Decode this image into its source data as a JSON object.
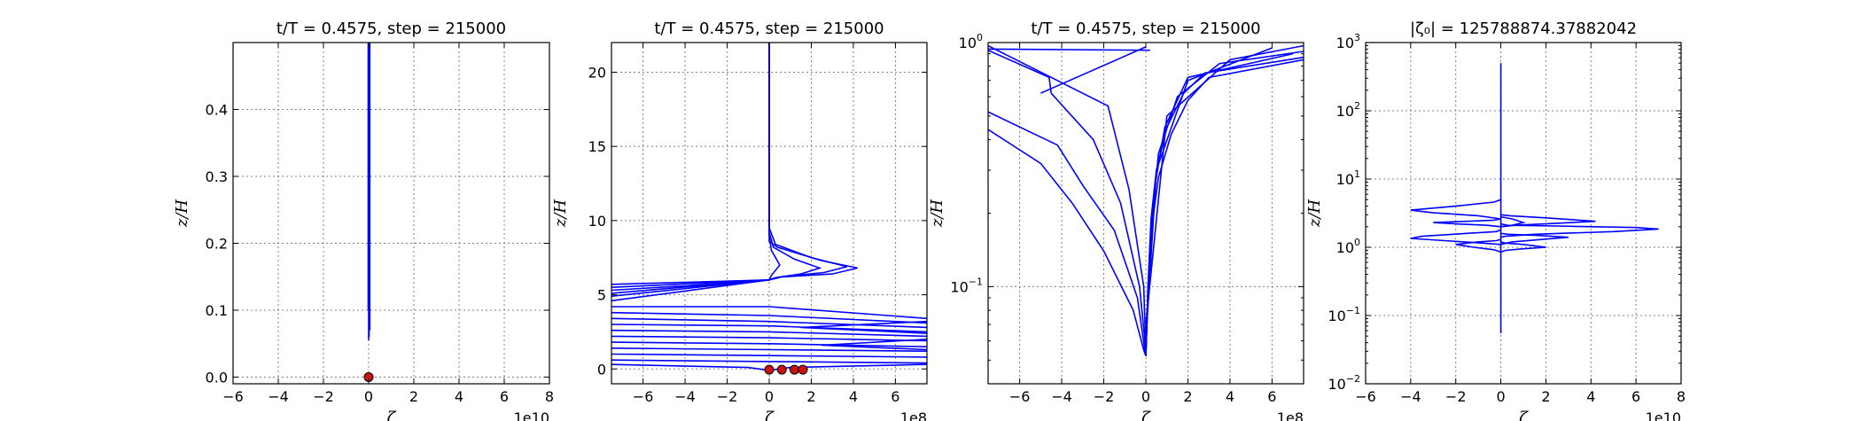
{
  "chart_data": [
    {
      "type": "line",
      "title": "t/T = 0.4575, step = 215000",
      "xlabel": "ζ",
      "ylabel": "z/H",
      "x_offset_label": "1e10",
      "xlim": [
        -6,
        8
      ],
      "ylim": [
        -0.01,
        0.5
      ],
      "xscale": "linear",
      "yscale": "linear",
      "grid": true,
      "xticks": [
        -6,
        -4,
        -2,
        0,
        2,
        4,
        6,
        8
      ],
      "xtick_labels": [
        "−6",
        "−4",
        "−2",
        "0",
        "2",
        "4",
        "6",
        "8"
      ],
      "yticks": [
        0.0,
        0.1,
        0.2,
        0.3,
        0.4
      ],
      "ytick_labels": [
        "0.0",
        "0.1",
        "0.2",
        "0.3",
        "0.4"
      ],
      "series": [
        {
          "x": [
            0.0,
            0.0
          ],
          "y": [
            0.055,
            0.5
          ]
        },
        {
          "x": [
            0.02,
            0.02
          ],
          "y": [
            0.06,
            0.5
          ]
        },
        {
          "x": [
            0.03,
            0.03
          ],
          "y": [
            0.07,
            0.5
          ]
        },
        {
          "x": [
            0.05,
            0.05
          ],
          "y": [
            0.07,
            0.5
          ]
        },
        {
          "x": [
            -0.02,
            -0.02
          ],
          "y": [
            0.1,
            0.5
          ]
        }
      ],
      "markers": [
        {
          "x": 0.0,
          "y": 0.0
        }
      ]
    },
    {
      "type": "line",
      "title": "t/T = 0.4575, step = 215000",
      "xlabel": "ζ",
      "ylabel": "z/H",
      "x_offset_label": "1e8",
      "xlim": [
        -7.5,
        7.5
      ],
      "ylim": [
        -1,
        22
      ],
      "xscale": "linear",
      "yscale": "linear",
      "grid": true,
      "xticks": [
        -6,
        -4,
        -2,
        0,
        2,
        4,
        6
      ],
      "xtick_labels": [
        "−6",
        "−4",
        "−2",
        "0",
        "2",
        "4",
        "6"
      ],
      "yticks": [
        0,
        5,
        10,
        15,
        20
      ],
      "ytick_labels": [
        "0",
        "5",
        "10",
        "15",
        "20"
      ],
      "series": [
        {
          "x": [
            0,
            0,
            0,
            0.4,
            2.5,
            4.2,
            3.0,
            0.6,
            0,
            -2.5,
            -7.5
          ],
          "y": [
            22,
            10,
            8.6,
            8.2,
            7.3,
            6.8,
            6.4,
            6.2,
            6.0,
            5.9,
            5.7
          ]
        },
        {
          "x": [
            0,
            0,
            0.3,
            2.0,
            3.7,
            2.6,
            0.5,
            0,
            -3.0,
            -7.5
          ],
          "y": [
            22,
            9.5,
            8.4,
            7.5,
            6.9,
            6.5,
            6.2,
            6.0,
            5.8,
            5.5
          ]
        },
        {
          "x": [
            0,
            0,
            0.2,
            1.2,
            2.4,
            1.5,
            0.3,
            0,
            -4.0,
            -7.5
          ],
          "y": [
            22,
            9.2,
            8.2,
            7.4,
            6.8,
            6.4,
            6.15,
            6.0,
            5.6,
            5.3
          ]
        },
        {
          "x": [
            0,
            0,
            0.1,
            0.5,
            0.1,
            0,
            -7.5
          ],
          "y": [
            22,
            9.0,
            8.0,
            7.0,
            6.3,
            6.0,
            5.1
          ]
        },
        {
          "x": [
            0,
            -7.5
          ],
          "y": [
            6.0,
            4.9
          ]
        },
        {
          "x": [
            0,
            -7.5
          ],
          "y": [
            6.0,
            4.6
          ]
        },
        {
          "x": [
            -7.5,
            0,
            7.5
          ],
          "y": [
            4.2,
            4.2,
            3.4
          ]
        },
        {
          "x": [
            -7.5,
            0,
            7.5
          ],
          "y": [
            3.8,
            3.6,
            3.1
          ]
        },
        {
          "x": [
            -7.5,
            0,
            7.5
          ],
          "y": [
            3.4,
            3.2,
            2.8
          ]
        },
        {
          "x": [
            -7.5,
            0,
            7.5
          ],
          "y": [
            3.0,
            2.9,
            2.5
          ]
        },
        {
          "x": [
            -7.5,
            0,
            7.5
          ],
          "y": [
            2.6,
            2.5,
            2.2
          ]
        },
        {
          "x": [
            -7.5,
            0,
            7.5
          ],
          "y": [
            2.2,
            2.1,
            1.9
          ]
        },
        {
          "x": [
            -7.5,
            0,
            7.5
          ],
          "y": [
            1.8,
            1.7,
            1.5
          ]
        },
        {
          "x": [
            -7.5,
            0,
            7.5
          ],
          "y": [
            1.4,
            1.3,
            1.2
          ]
        },
        {
          "x": [
            -7.5,
            0,
            7.5
          ],
          "y": [
            1.0,
            0.9,
            0.8
          ]
        },
        {
          "x": [
            -7.5,
            0,
            7.5
          ],
          "y": [
            0.6,
            0.5,
            0.4
          ]
        },
        {
          "x": [
            -7.5,
            -1,
            0,
            1,
            7.5
          ],
          "y": [
            0.3,
            0.1,
            -0.1,
            0.1,
            0.3
          ]
        },
        {
          "x": [
            7.5,
            1.5,
            7.5
          ],
          "y": [
            3.2,
            2.8,
            2.4
          ]
        },
        {
          "x": [
            7.5,
            2.5,
            7.5
          ],
          "y": [
            2.0,
            1.6,
            1.3
          ]
        }
      ],
      "markers": [
        {
          "x": 0.0,
          "y": -0.05
        },
        {
          "x": 0.6,
          "y": -0.05
        },
        {
          "x": 1.2,
          "y": -0.05
        },
        {
          "x": 1.6,
          "y": -0.05
        }
      ]
    },
    {
      "type": "line",
      "title": "t/T = 0.4575, step = 215000",
      "xlabel": "ζ",
      "ylabel": "z/H",
      "x_offset_label": "1e8",
      "xlim": [
        -7.5,
        7.5
      ],
      "ylim": [
        0.04,
        1.0
      ],
      "xscale": "linear",
      "yscale": "log",
      "grid": true,
      "xticks": [
        -6,
        -4,
        -2,
        0,
        2,
        4,
        6
      ],
      "xtick_labels": [
        "−6",
        "−4",
        "−2",
        "0",
        "2",
        "4",
        "6"
      ],
      "yticks": [
        0.1,
        1.0
      ],
      "ytick_labels": [
        [
          "10",
          "−1"
        ],
        [
          "10",
          "0"
        ]
      ],
      "series": [
        {
          "x": [
            -7.5,
            -4.2,
            -3.0,
            -1.5,
            -0.4,
            -0.05,
            0
          ],
          "y": [
            0.52,
            0.38,
            0.26,
            0.17,
            0.09,
            0.055,
            0.052
          ]
        },
        {
          "x": [
            -7.5,
            -5.0,
            -3.5,
            -2.0,
            -0.6,
            -0.1,
            0
          ],
          "y": [
            0.44,
            0.32,
            0.22,
            0.14,
            0.08,
            0.055,
            0.052
          ]
        },
        {
          "x": [
            -7.5,
            -4.6,
            -4.5,
            -2.5,
            -1.2,
            -0.3,
            0
          ],
          "y": [
            0.93,
            0.72,
            0.62,
            0.4,
            0.22,
            0.1,
            0.055
          ]
        },
        {
          "x": [
            -7.5,
            -1.8,
            -0.8,
            -0.1,
            0
          ],
          "y": [
            0.97,
            0.55,
            0.25,
            0.1,
            0.055
          ]
        },
        {
          "x": [
            -7.5,
            0.2
          ],
          "y": [
            0.94,
            0.93
          ]
        },
        {
          "x": [
            -5.0,
            0.0
          ],
          "y": [
            0.62,
            0.96
          ]
        },
        {
          "x": [
            0,
            0.1,
            0.3,
            0.6,
            1.2,
            2.0,
            3.0,
            7.5
          ],
          "y": [
            0.052,
            0.1,
            0.18,
            0.28,
            0.42,
            0.58,
            0.72,
            0.85
          ]
        },
        {
          "x": [
            0,
            0.1,
            0.25,
            0.5,
            1.0,
            1.8,
            2.8,
            7.5
          ],
          "y": [
            0.052,
            0.1,
            0.19,
            0.3,
            0.45,
            0.62,
            0.75,
            0.87
          ]
        },
        {
          "x": [
            0,
            0.15,
            0.4,
            0.9,
            2.0,
            7.0
          ],
          "y": [
            0.052,
            0.12,
            0.25,
            0.45,
            0.72,
            0.9
          ]
        },
        {
          "x": [
            0,
            0.2,
            0.6,
            1.5,
            3.5,
            7.5
          ],
          "y": [
            0.055,
            0.15,
            0.35,
            0.6,
            0.82,
            0.92
          ]
        },
        {
          "x": [
            0,
            0.5,
            2.0,
            6.0
          ],
          "y": [
            0.06,
            0.3,
            0.7,
            0.95
          ]
        },
        {
          "x": [
            0,
            1.0,
            4.0,
            7.5
          ],
          "y": [
            0.07,
            0.5,
            0.85,
            0.97
          ]
        }
      ],
      "markers": []
    },
    {
      "type": "line",
      "title": "|ζ₀| = 125788874.37882042",
      "xlabel": "ζ",
      "ylabel": "z/H",
      "x_offset_label": "1e10",
      "xlim": [
        -6,
        8
      ],
      "ylim": [
        0.01,
        1000
      ],
      "xscale": "linear",
      "yscale": "log",
      "grid": true,
      "xticks": [
        -6,
        -4,
        -2,
        0,
        2,
        4,
        6,
        8
      ],
      "xtick_labels": [
        "−6",
        "−4",
        "−2",
        "0",
        "2",
        "4",
        "6",
        "8"
      ],
      "yticks": [
        0.01,
        0.1,
        1,
        10,
        100,
        1000
      ],
      "ytick_labels": [
        [
          "10",
          "−2"
        ],
        [
          "10",
          "−1"
        ],
        [
          "10",
          "0"
        ],
        [
          "10",
          "1"
        ],
        [
          "10",
          "2"
        ],
        [
          "10",
          "3"
        ]
      ],
      "series": [
        {
          "x": [
            0,
            0
          ],
          "y": [
            0.055,
            500
          ]
        },
        {
          "x": [
            0,
            0.3,
            2.5,
            6.0,
            7.0,
            5.0,
            1.5,
            0.2,
            0
          ],
          "y": [
            2.2,
            2.1,
            2.05,
            1.95,
            1.85,
            1.7,
            1.55,
            1.45,
            1.4
          ]
        },
        {
          "x": [
            0,
            -0.2,
            -1.5,
            -3.5,
            -4.0,
            -2.5,
            -0.8,
            0
          ],
          "y": [
            1.8,
            1.7,
            1.6,
            1.45,
            1.35,
            1.25,
            1.15,
            1.1
          ]
        },
        {
          "x": [
            0,
            -0.3,
            -2.0,
            -4.0,
            -3.0,
            -1.0,
            0
          ],
          "y": [
            5.0,
            4.6,
            4.0,
            3.5,
            3.2,
            2.9,
            2.6
          ]
        },
        {
          "x": [
            0,
            0.4,
            2.0,
            4.2,
            2.5,
            0.6,
            0
          ],
          "y": [
            3.0,
            2.9,
            2.7,
            2.4,
            2.25,
            2.1,
            2.0
          ]
        },
        {
          "x": [
            0,
            0.3,
            1.5,
            3.0,
            1.8,
            0.5,
            0
          ],
          "y": [
            1.6,
            1.55,
            1.5,
            1.4,
            1.3,
            1.2,
            1.1
          ]
        },
        {
          "x": [
            0,
            -0.3,
            -1.5,
            -3.0,
            -2.0,
            -0.6,
            0
          ],
          "y": [
            2.6,
            2.5,
            2.4,
            2.3,
            2.2,
            2.1,
            2.0
          ]
        },
        {
          "x": [
            0,
            0.2,
            1.0,
            2.0,
            1.0,
            0.2,
            0
          ],
          "y": [
            1.2,
            1.15,
            1.1,
            1.0,
            0.95,
            0.9,
            0.85
          ]
        },
        {
          "x": [
            0,
            -0.2,
            -1.0,
            -2.0,
            -1.2,
            -0.3,
            0
          ],
          "y": [
            1.3,
            1.25,
            1.2,
            1.1,
            1.0,
            0.92,
            0.85
          ]
        },
        {
          "x": [
            0,
            0.5,
            1.0,
            0.5,
            0
          ],
          "y": [
            2.8,
            2.6,
            2.3,
            2.1,
            2.0
          ]
        }
      ],
      "markers": []
    }
  ]
}
